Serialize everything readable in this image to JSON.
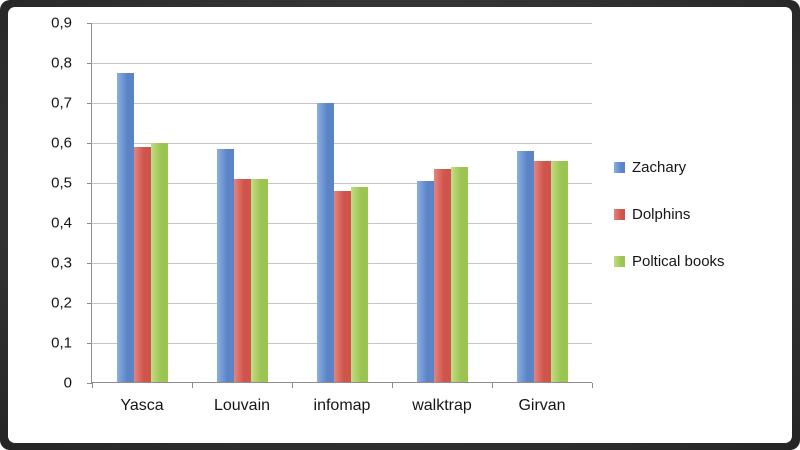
{
  "frame": {
    "outer_background": "#262626",
    "panel_background": "#ffffff",
    "gridline_color": "#c6c6c6",
    "axis_color": "#8e8e8e",
    "text_color": "#151515"
  },
  "chart_data": {
    "type": "bar",
    "title": "",
    "xlabel": "",
    "ylabel": "",
    "grid": true,
    "legend_position": "right",
    "ylim": [
      0,
      0.9
    ],
    "categories": [
      "Yasca",
      "Louvain",
      "infomap",
      "walktrap",
      "Girvan"
    ],
    "series": [
      {
        "name": "Zachary",
        "color": "#5b84c6",
        "color_light": "#8aafe2",
        "values": [
          0.775,
          0.585,
          0.7,
          0.505,
          0.58
        ]
      },
      {
        "name": "Dolphins",
        "color": "#cf544c",
        "color_light": "#e4847e",
        "values": [
          0.59,
          0.51,
          0.48,
          0.535,
          0.555
        ]
      },
      {
        "name": "Poltical books",
        "color": "#9cc452",
        "color_light": "#c0dd83",
        "values": [
          0.6,
          0.51,
          0.49,
          0.54,
          0.555
        ]
      }
    ],
    "yticks": [
      {
        "value": 0.9,
        "label": "0,9"
      },
      {
        "value": 0.8,
        "label": "0,8"
      },
      {
        "value": 0.7,
        "label": "0,7"
      },
      {
        "value": 0.6,
        "label": "0,6"
      },
      {
        "value": 0.5,
        "label": "0,5"
      },
      {
        "value": 0.4,
        "label": "0,4"
      },
      {
        "value": 0.3,
        "label": "0,3"
      },
      {
        "value": 0.2,
        "label": "0,2"
      },
      {
        "value": 0.1,
        "label": "0,1"
      },
      {
        "value": 0.0,
        "label": "0"
      }
    ]
  }
}
